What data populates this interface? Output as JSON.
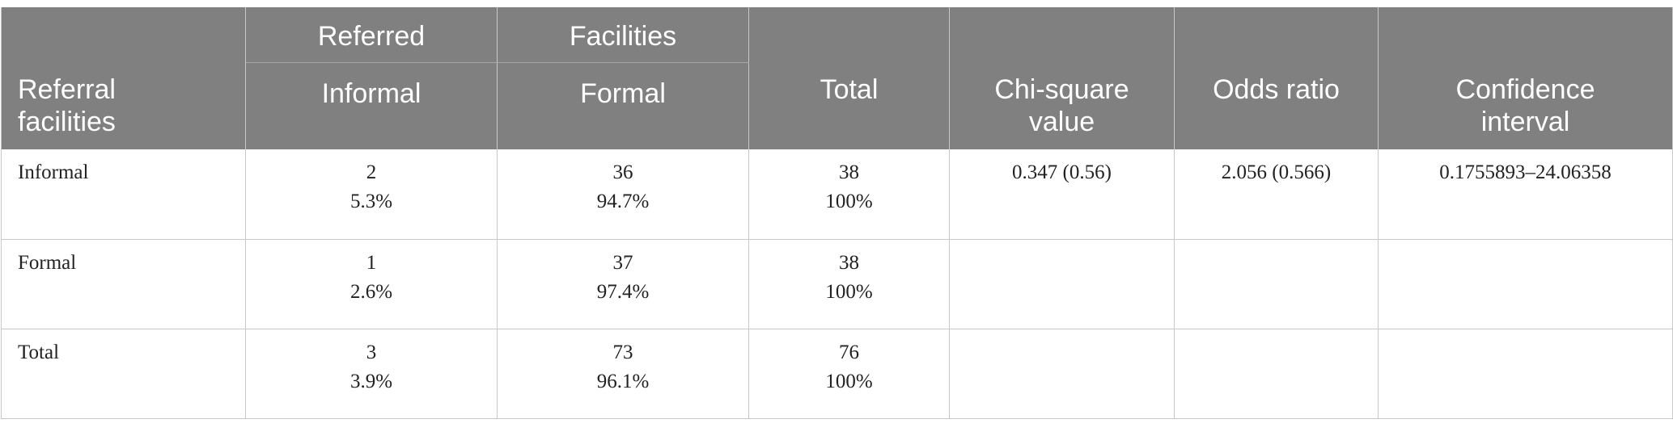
{
  "table": {
    "header": {
      "row_label": "Referral facilities",
      "group_left": "Referred",
      "group_right": "Facilities",
      "sub_informal": "Informal",
      "sub_formal": "Formal",
      "total": "Total",
      "chi_square": "Chi-square value",
      "odds_ratio": "Odds ratio",
      "confidence_interval": "Confidence interval"
    },
    "rows": [
      {
        "label": "Informal",
        "informal_n": "2",
        "informal_pct": "5.3%",
        "formal_n": "36",
        "formal_pct": "94.7%",
        "total_n": "38",
        "total_pct": "100%",
        "chi_square": "0.347 (0.56)",
        "odds_ratio": "2.056 (0.566)",
        "confidence_interval": "0.1755893–24.06358"
      },
      {
        "label": "Formal",
        "informal_n": "1",
        "informal_pct": "2.6%",
        "formal_n": "37",
        "formal_pct": "97.4%",
        "total_n": "38",
        "total_pct": "100%",
        "chi_square": "",
        "odds_ratio": "",
        "confidence_interval": ""
      },
      {
        "label": "Total",
        "informal_n": "3",
        "informal_pct": "3.9%",
        "formal_n": "73",
        "formal_pct": "96.1%",
        "total_n": "76",
        "total_pct": "100%",
        "chi_square": "",
        "odds_ratio": "",
        "confidence_interval": ""
      }
    ]
  }
}
